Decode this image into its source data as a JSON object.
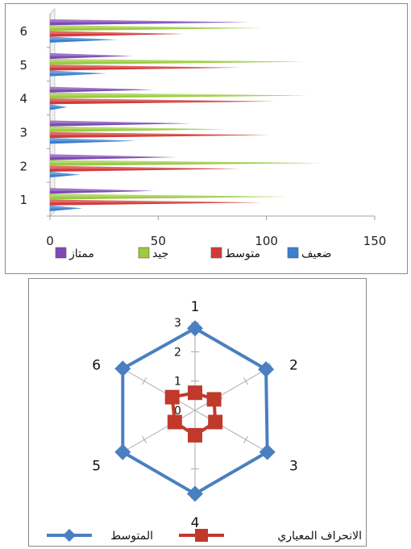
{
  "chart_data": [
    {
      "type": "bar",
      "orientation": "horizontal",
      "categories": [
        "1",
        "2",
        "3",
        "4",
        "5",
        "6"
      ],
      "series": [
        {
          "name": "ضعيف",
          "color": "#3b7fd0",
          "values": [
            15,
            14,
            40,
            8,
            26,
            31
          ]
        },
        {
          "name": "متوسط",
          "color": "#d23a3a",
          "values": [
            98,
            88,
            101,
            104,
            88,
            62
          ]
        },
        {
          "name": "جيد",
          "color": "#9bcb3f",
          "values": [
            110,
            126,
            81,
            119,
            118,
            98
          ]
        },
        {
          "name": "ممتاز",
          "color": "#7f4ab4",
          "values": [
            48,
            58,
            65,
            48,
            38,
            92
          ]
        }
      ],
      "xlim": [
        0,
        150
      ],
      "xticks": [
        0,
        50,
        100,
        150
      ],
      "legend": "bottom"
    },
    {
      "type": "radar",
      "categories": [
        "1",
        "2",
        "3",
        "4",
        "5",
        "6"
      ],
      "rlim": [
        0,
        3
      ],
      "rticks": [
        0,
        1,
        2,
        3
      ],
      "series": [
        {
          "name": "المتوسط",
          "color": "#4a7fc1",
          "marker": "diamond",
          "values": [
            2.8,
            2.8,
            2.85,
            2.85,
            2.85,
            2.85
          ]
        },
        {
          "name": "الانحراف المعياري",
          "color": "#c0392b",
          "marker": "square",
          "values": [
            0.6,
            0.75,
            0.8,
            0.85,
            0.8,
            0.9
          ]
        }
      ],
      "legend": "bottom"
    }
  ]
}
